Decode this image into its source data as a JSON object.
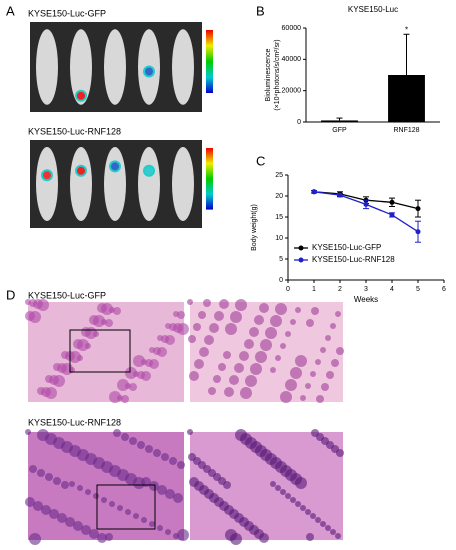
{
  "panels": {
    "a": {
      "label": "A",
      "captions": [
        "KYSE150-Luc-GFP",
        "KYSE150-Luc-RNF128"
      ]
    },
    "d": {
      "label": "D",
      "captions": [
        "KYSE150-Luc-GFP",
        "KYSE150-Luc-RNF128"
      ]
    }
  },
  "chart_data": [
    {
      "type": "bar",
      "panel_label": "B",
      "title": "KYSE150-Luc",
      "ylabel": [
        "Bioluminescence",
        "(×10⁴photons/s/cm²/sr)"
      ],
      "categories": [
        "GFP",
        "RNF128"
      ],
      "values": [
        1000,
        30000
      ],
      "errors": [
        1500,
        26000
      ],
      "color": "#000000",
      "ylim": [
        0,
        60000
      ],
      "yticks": [
        0,
        20000,
        40000,
        60000
      ],
      "annotation": "*"
    },
    {
      "type": "line",
      "panel_label": "C",
      "xlabel": "Weeks",
      "ylabel": "Body weight(g)",
      "x": [
        1,
        2,
        3,
        4,
        5
      ],
      "xlim": [
        0,
        6
      ],
      "xticks": [
        0,
        1,
        2,
        3,
        4,
        5,
        6
      ],
      "ylim": [
        0,
        25
      ],
      "yticks": [
        0,
        5,
        10,
        15,
        20,
        25
      ],
      "legend": "lower left",
      "series": [
        {
          "name": "KYSE150-Luc-GFP",
          "color": "#000000",
          "values": [
            21,
            20.5,
            19,
            18.5,
            17
          ],
          "errors": [
            0.3,
            0.5,
            0.8,
            1,
            2
          ]
        },
        {
          "name": "KYSE150-Luc-RNF128",
          "color": "#2020c8",
          "values": [
            21,
            20.2,
            18,
            15.5,
            11.5
          ],
          "errors": [
            0.3,
            0.4,
            1,
            0.5,
            2.5
          ]
        }
      ]
    }
  ]
}
